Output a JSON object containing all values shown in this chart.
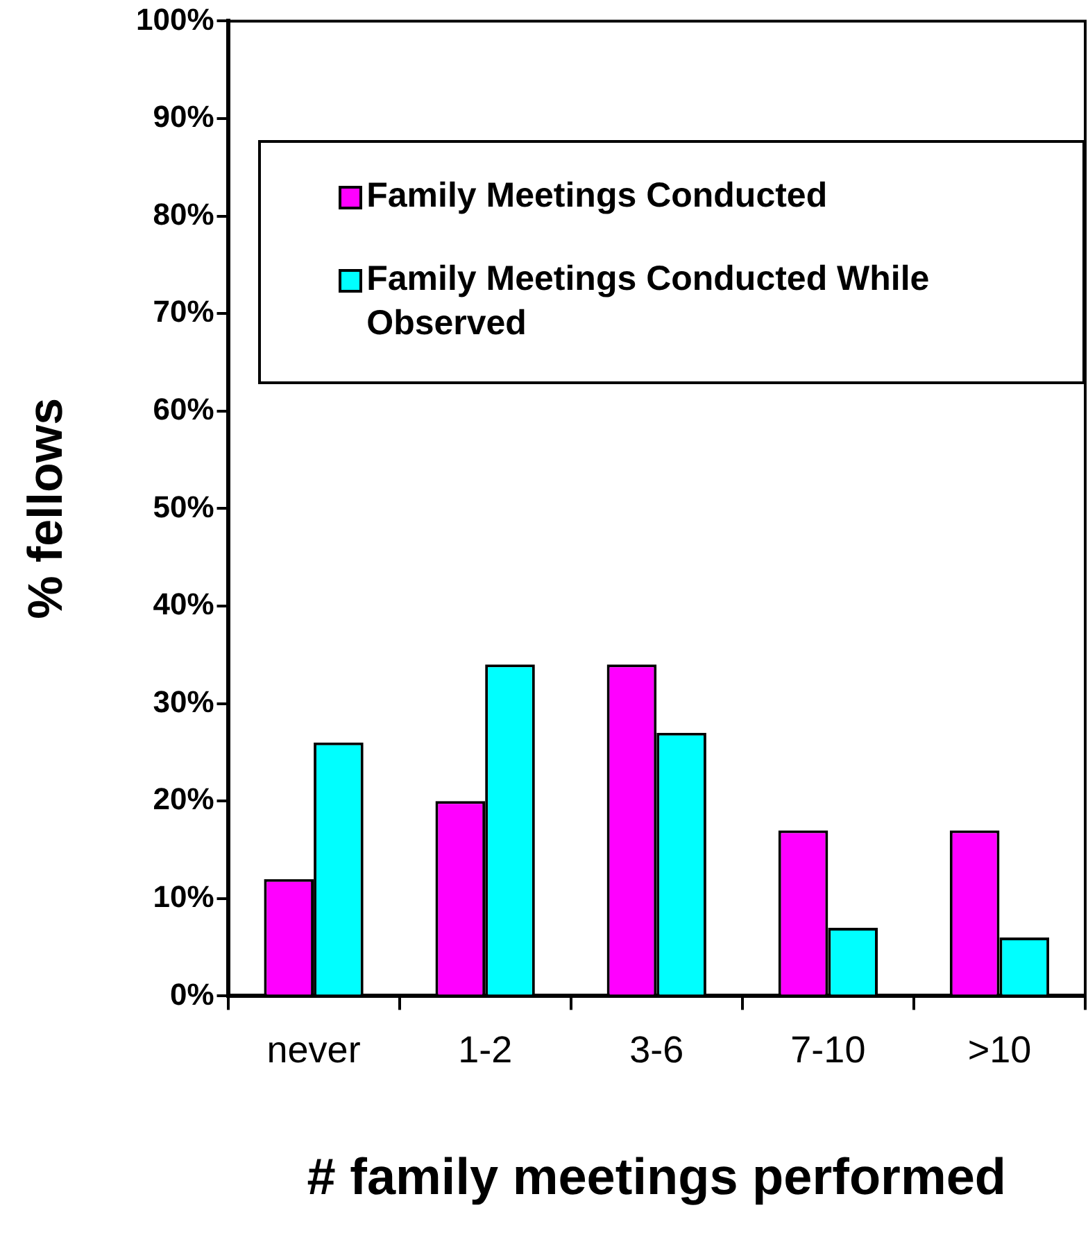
{
  "chart_data": {
    "type": "bar",
    "xlabel": "# family meetings performed",
    "ylabel": "% fellows",
    "categories": [
      "never",
      "1-2",
      "3-6",
      "7-10",
      ">10"
    ],
    "series": [
      {
        "name": "Family Meetings Conducted",
        "color": "#ff00ff",
        "values": [
          12,
          20,
          34,
          17,
          17
        ]
      },
      {
        "name": "Family Meetings Conducted While Observed",
        "color": "#00ffff",
        "values": [
          26,
          34,
          27,
          7,
          6
        ]
      }
    ],
    "ylim": [
      0,
      100
    ],
    "yticks": [
      {
        "value": 0,
        "label": "0%"
      },
      {
        "value": 10,
        "label": "10%"
      },
      {
        "value": 20,
        "label": "20%"
      },
      {
        "value": 30,
        "label": "30%"
      },
      {
        "value": 40,
        "label": "40%"
      },
      {
        "value": 50,
        "label": "50%"
      },
      {
        "value": 60,
        "label": "60%"
      },
      {
        "value": 70,
        "label": "70%"
      },
      {
        "value": 80,
        "label": "80%"
      },
      {
        "value": 90,
        "label": "90%"
      },
      {
        "value": 100,
        "label": "100%"
      }
    ],
    "grid": false,
    "legend": "top"
  }
}
